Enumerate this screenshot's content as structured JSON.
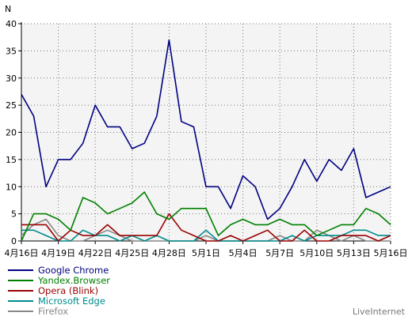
{
  "chart_data": {
    "type": "line",
    "ylabel": "N",
    "ylim": [
      0,
      40
    ],
    "yticks": [
      0,
      5,
      10,
      15,
      20,
      25,
      30,
      35,
      40
    ],
    "grid": true,
    "legend_position": "bottom-left",
    "x": [
      "4月16日",
      "4月17日",
      "4月18日",
      "4月19日",
      "4月20日",
      "4月21日",
      "4月22日",
      "4月23日",
      "4月24日",
      "4月25日",
      "4月26日",
      "4月27日",
      "4月28日",
      "4月29日",
      "4月30日",
      "5月1日",
      "5月2日",
      "5月3日",
      "5月4日",
      "5月5日",
      "5月6日",
      "5月7日",
      "5月8日",
      "5月9日",
      "5月10日",
      "5月11日",
      "5月12日",
      "5月13日",
      "5月14日",
      "5月15日",
      "5月16日"
    ],
    "xtick_labels": [
      "4月16日",
      "4月19日",
      "4月22日",
      "4月25日",
      "4月28日",
      "5月1日",
      "5月4日",
      "5月7日",
      "5月10日",
      "5月13日",
      "5月16日"
    ],
    "series": [
      {
        "name": "Google Chrome",
        "color": "#000080",
        "values": [
          27,
          23,
          10,
          15,
          15,
          18,
          25,
          21,
          21,
          17,
          18,
          23,
          37,
          22,
          21,
          10,
          10,
          6,
          12,
          10,
          4,
          6,
          10,
          15,
          11,
          15,
          13,
          17,
          8,
          9,
          10
        ]
      },
      {
        "name": "Yandex.Browser",
        "color": "#008000",
        "values": [
          0,
          5,
          5,
          4,
          2,
          8,
          7,
          5,
          6,
          7,
          9,
          5,
          4,
          6,
          6,
          6,
          1,
          3,
          4,
          3,
          3,
          4,
          3,
          3,
          1,
          2,
          3,
          3,
          6,
          5,
          3
        ]
      },
      {
        "name": "Opera (Blink)",
        "color": "#990000",
        "values": [
          3,
          3,
          3,
          0,
          2,
          1,
          1,
          3,
          1,
          1,
          1,
          1,
          5,
          2,
          1,
          0,
          0,
          1,
          0,
          1,
          2,
          0,
          0,
          2,
          0,
          0,
          1,
          1,
          1,
          0,
          1
        ]
      },
      {
        "name": "Microsoft Edge",
        "color": "#008b8b",
        "values": [
          2,
          2,
          1,
          0,
          0,
          2,
          1,
          1,
          0,
          1,
          0,
          1,
          0,
          0,
          0,
          2,
          0,
          0,
          0,
          0,
          0,
          0,
          1,
          0,
          1,
          1,
          1,
          2,
          2,
          1,
          1
        ]
      },
      {
        "name": "Firefox",
        "color": "#888888",
        "values": [
          1,
          3,
          4,
          1,
          0,
          0,
          1,
          2,
          1,
          0,
          0,
          0,
          0,
          0,
          0,
          1,
          0,
          0,
          0,
          0,
          0,
          1,
          0,
          0,
          2,
          1,
          0,
          1,
          0,
          0,
          0
        ]
      }
    ]
  },
  "credit": "LiveInternet"
}
